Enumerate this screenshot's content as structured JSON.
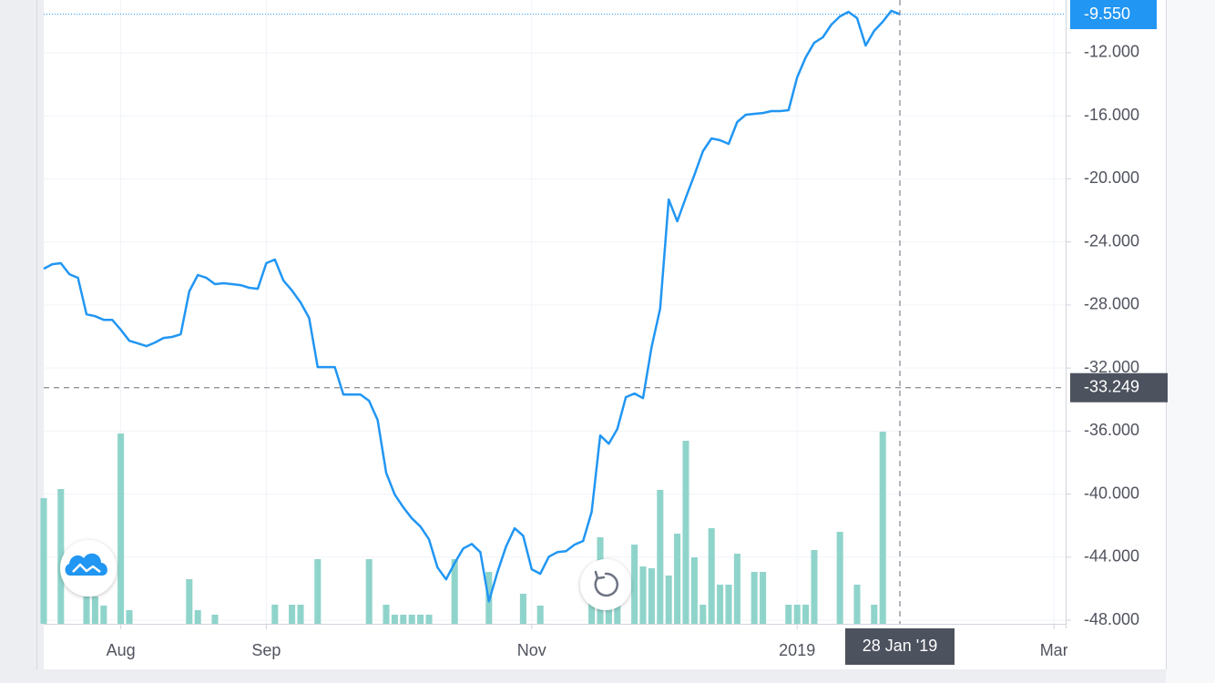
{
  "chart_data": {
    "type": "line",
    "categories": [
      null,
      null,
      null,
      null,
      null,
      null,
      null,
      null,
      null,
      "Aug",
      null,
      null,
      null,
      null,
      null,
      null,
      null,
      null,
      null,
      null,
      null,
      null,
      null,
      null,
      null,
      null,
      "Sep",
      null,
      null,
      null,
      null,
      null,
      null,
      null,
      null,
      null,
      null,
      null,
      null,
      null,
      null,
      null,
      null,
      null,
      null,
      null,
      null,
      null,
      null,
      null,
      null,
      null,
      null,
      null,
      null,
      null,
      null,
      "Nov",
      null,
      null,
      null,
      null,
      null,
      null,
      null,
      null,
      null,
      null,
      null,
      null,
      null,
      null,
      null,
      null,
      null,
      null,
      null,
      null,
      null,
      null,
      null,
      null,
      null,
      null,
      null,
      null,
      null,
      null,
      "2019",
      null,
      null,
      null,
      null,
      null,
      null,
      null,
      null,
      null,
      null,
      null,
      null,
      null,
      null,
      null,
      null,
      null,
      null,
      null,
      null,
      null,
      null,
      null,
      null,
      null,
      null,
      null,
      null,
      null,
      "Mar",
      null
    ],
    "series": [
      {
        "type": "line",
        "color": "#2196f3",
        "values": [
          -25.7,
          -25.41,
          -25.35,
          -26.05,
          -26.28,
          -28.59,
          -28.71,
          -28.94,
          -28.94,
          -29.57,
          -30.27,
          -30.44,
          -30.61,
          -30.38,
          -30.09,
          -30.03,
          -29.86,
          -27.14,
          -26.1,
          -26.28,
          -26.68,
          -26.62,
          -26.68,
          -26.74,
          -26.91,
          -26.97,
          -25.35,
          -25.12,
          -26.45,
          -27.09,
          -27.84,
          -28.82,
          -31.94,
          -31.94,
          -31.94,
          -33.68,
          -33.68,
          -33.68,
          -34.08,
          -35.29,
          -38.65,
          -40.03,
          -40.84,
          -41.54,
          -42.06,
          -42.87,
          -44.66,
          -45.41,
          -44.37,
          -43.45,
          -43.16,
          -43.68,
          -46.8,
          -44.95,
          -43.33,
          -42.17,
          -42.64,
          -44.77,
          -45.06,
          -43.97,
          -43.68,
          -43.62,
          -43.21,
          -42.98,
          -41.13,
          -36.28,
          -36.8,
          -35.87,
          -33.85,
          -33.62,
          -33.91,
          -30.67,
          -28.24,
          -21.31,
          -22.69,
          -21.19,
          -19.75,
          -18.24,
          -17.43,
          -17.55,
          -17.78,
          -16.39,
          -15.93,
          -15.87,
          -15.82,
          -15.7,
          -15.7,
          -15.64,
          -13.56,
          -12.29,
          -11.36,
          -11.02,
          -10.21,
          -9.69,
          -9.4,
          -9.8,
          -11.54,
          -10.61,
          -10.03,
          -9.34,
          -9.55,
          null,
          null,
          null,
          null,
          null,
          null,
          null,
          null,
          null,
          null,
          null,
          null,
          null,
          null,
          null,
          null,
          null,
          null,
          null
        ]
      },
      {
        "type": "bar",
        "axis": "y2",
        "color": "#8fd4cb",
        "values": [
          138,
          null,
          148,
          null,
          null,
          30,
          30,
          20,
          null,
          209,
          15,
          null,
          null,
          null,
          null,
          null,
          null,
          49,
          15,
          null,
          10,
          null,
          null,
          null,
          null,
          null,
          null,
          21,
          null,
          21,
          21,
          null,
          71,
          null,
          null,
          null,
          null,
          null,
          71,
          null,
          21,
          10,
          10,
          10,
          10,
          10,
          null,
          null,
          71,
          null,
          null,
          null,
          57,
          null,
          null,
          null,
          33,
          null,
          20,
          null,
          null,
          null,
          null,
          null,
          35,
          95,
          35,
          21,
          null,
          87,
          63,
          61,
          147,
          53,
          99,
          201,
          73,
          21,
          105,
          43,
          43,
          77,
          null,
          57,
          57,
          null,
          null,
          21,
          21,
          21,
          81,
          null,
          null,
          101,
          null,
          43,
          null,
          21,
          211,
          null,
          null,
          null,
          null,
          null,
          null,
          null,
          null,
          null,
          null,
          null,
          null,
          null,
          null,
          null,
          null,
          null,
          null,
          null,
          null,
          null
        ]
      }
    ],
    "ylim": [
      -48.23,
      -8.65
    ],
    "yticks": [
      {
        "value": -48,
        "label": "-48.000"
      },
      {
        "value": -44,
        "label": "-44.000"
      },
      {
        "value": -40,
        "label": "-40.000"
      },
      {
        "value": -36,
        "label": "-36.000"
      },
      {
        "value": -32,
        "label": "-32.000"
      },
      {
        "value": -28,
        "label": "-28.000"
      },
      {
        "value": -24,
        "label": "-24.000"
      },
      {
        "value": -20,
        "label": "-20.000"
      },
      {
        "value": -16,
        "label": "-16.000"
      },
      {
        "value": -12,
        "label": "-12.000"
      }
    ],
    "y2lim": [
      0,
      685
    ],
    "last_price_label": "-9.550",
    "crosshair": {
      "value": -33.249,
      "label": "-33.249",
      "date_label": "28 Jan '19"
    },
    "grid": true
  }
}
